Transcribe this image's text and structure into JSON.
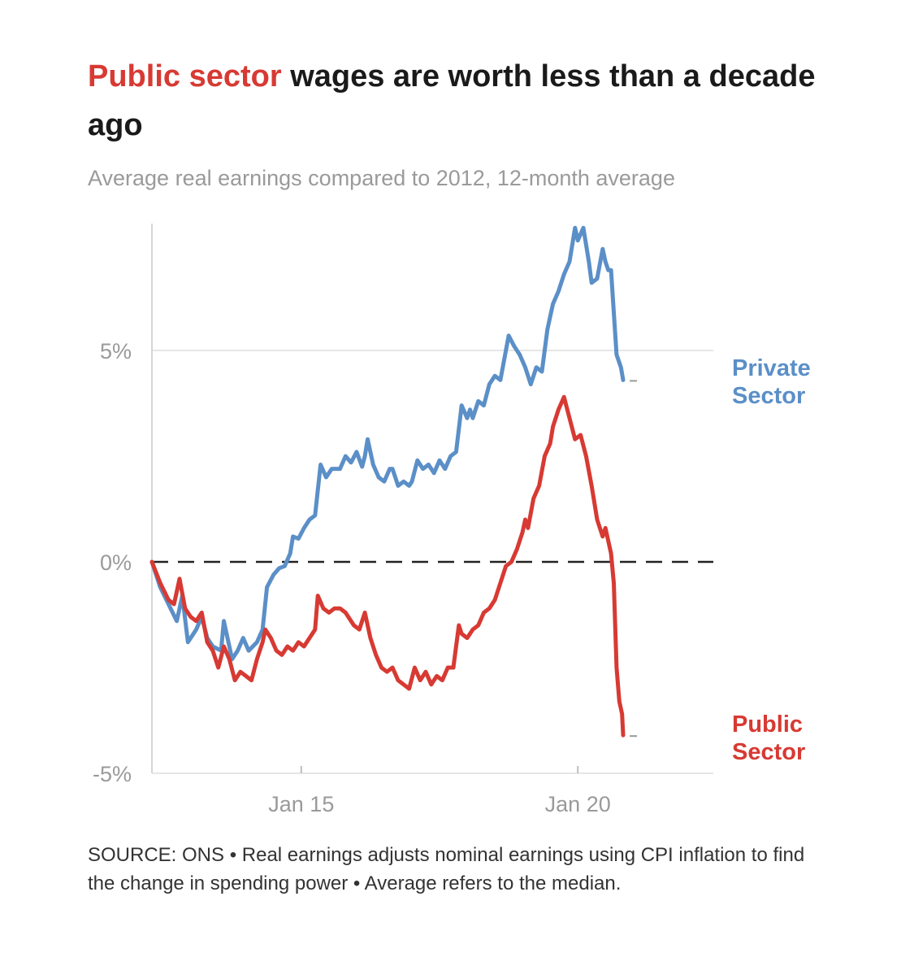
{
  "title": {
    "highlight": "Public sector",
    "rest": " wages are worth less than a decade ago",
    "highlight_color": "#d73a33"
  },
  "subtitle": "Average real earnings compared to 2012, 12-month average",
  "source": "SOURCE: ONS • Real earnings adjusts nominal earnings using CPI inflation to find the change in spending power • Average refers to the median.",
  "chart_data": {
    "type": "line",
    "title": "Public sector wages are worth less than a decade ago",
    "subtitle": "Average real earnings compared to 2012, 12-month average",
    "xlabel": "",
    "ylabel": "",
    "x_unit": "year (decimal)",
    "xlim": [
      2012.3,
      2022.45
    ],
    "ylim": [
      -5,
      8
    ],
    "y_ticks": [
      {
        "value": 5,
        "label": "5%"
      },
      {
        "value": 0,
        "label": "0%"
      },
      {
        "value": -5,
        "label": "-5%"
      }
    ],
    "x_ticks": [
      {
        "value": 2015,
        "label": "Jan 15"
      },
      {
        "value": 2020,
        "label": "Jan 20"
      }
    ],
    "baseline": {
      "value": 0,
      "style": "dashed"
    },
    "grid": "horizontal",
    "legend": "direct labels at line ends (right)",
    "series": [
      {
        "name": "Private Sector",
        "label_lines": [
          "Private",
          "Sector"
        ],
        "color": "#5b8fc7",
        "points": [
          [
            2012.3,
            0.0
          ],
          [
            2012.45,
            -0.6
          ],
          [
            2012.6,
            -1.0
          ],
          [
            2012.75,
            -1.4
          ],
          [
            2012.85,
            -0.8
          ],
          [
            2012.95,
            -1.9
          ],
          [
            2013.1,
            -1.6
          ],
          [
            2013.2,
            -1.3
          ],
          [
            2013.3,
            -1.8
          ],
          [
            2013.4,
            -2.0
          ],
          [
            2013.55,
            -2.1
          ],
          [
            2013.6,
            -1.4
          ],
          [
            2013.7,
            -2.0
          ],
          [
            2013.75,
            -2.3
          ],
          [
            2013.85,
            -2.1
          ],
          [
            2013.95,
            -1.8
          ],
          [
            2014.05,
            -2.1
          ],
          [
            2014.2,
            -1.9
          ],
          [
            2014.3,
            -1.6
          ],
          [
            2014.38,
            -0.6
          ],
          [
            2014.42,
            -0.5
          ],
          [
            2014.5,
            -0.3
          ],
          [
            2014.6,
            -0.15
          ],
          [
            2014.7,
            -0.1
          ],
          [
            2014.8,
            0.2
          ],
          [
            2014.85,
            0.6
          ],
          [
            2014.95,
            0.55
          ],
          [
            2015.05,
            0.8
          ],
          [
            2015.15,
            1.0
          ],
          [
            2015.25,
            1.1
          ],
          [
            2015.35,
            2.3
          ],
          [
            2015.45,
            2.0
          ],
          [
            2015.55,
            2.2
          ],
          [
            2015.7,
            2.2
          ],
          [
            2015.8,
            2.5
          ],
          [
            2015.9,
            2.35
          ],
          [
            2016.0,
            2.6
          ],
          [
            2016.1,
            2.25
          ],
          [
            2016.15,
            2.5
          ],
          [
            2016.2,
            2.9
          ],
          [
            2016.3,
            2.3
          ],
          [
            2016.4,
            2.0
          ],
          [
            2016.5,
            1.9
          ],
          [
            2016.6,
            2.2
          ],
          [
            2016.65,
            2.2
          ],
          [
            2016.75,
            1.8
          ],
          [
            2016.85,
            1.9
          ],
          [
            2016.95,
            1.8
          ],
          [
            2017.0,
            1.9
          ],
          [
            2017.1,
            2.4
          ],
          [
            2017.2,
            2.2
          ],
          [
            2017.3,
            2.3
          ],
          [
            2017.4,
            2.1
          ],
          [
            2017.5,
            2.4
          ],
          [
            2017.6,
            2.2
          ],
          [
            2017.7,
            2.5
          ],
          [
            2017.8,
            2.6
          ],
          [
            2017.9,
            3.7
          ],
          [
            2018.0,
            3.4
          ],
          [
            2018.05,
            3.6
          ],
          [
            2018.1,
            3.4
          ],
          [
            2018.2,
            3.8
          ],
          [
            2018.3,
            3.7
          ],
          [
            2018.4,
            4.2
          ],
          [
            2018.5,
            4.4
          ],
          [
            2018.6,
            4.3
          ],
          [
            2018.75,
            5.35
          ],
          [
            2018.85,
            5.1
          ],
          [
            2018.95,
            4.9
          ],
          [
            2019.05,
            4.6
          ],
          [
            2019.15,
            4.2
          ],
          [
            2019.25,
            4.6
          ],
          [
            2019.35,
            4.5
          ],
          [
            2019.45,
            5.5
          ],
          [
            2019.55,
            6.1
          ],
          [
            2019.65,
            6.4
          ],
          [
            2019.75,
            6.8
          ],
          [
            2019.85,
            7.1
          ],
          [
            2019.95,
            7.9
          ],
          [
            2020.0,
            7.6
          ],
          [
            2020.1,
            7.9
          ],
          [
            2020.2,
            7.1
          ],
          [
            2020.25,
            6.6
          ],
          [
            2020.35,
            6.7
          ],
          [
            2020.45,
            7.4
          ],
          [
            2020.5,
            7.1
          ],
          [
            2020.55,
            6.9
          ],
          [
            2020.6,
            6.9
          ],
          [
            2020.7,
            4.9
          ],
          [
            2020.78,
            4.6
          ],
          [
            2020.82,
            4.3
          ]
        ]
      },
      {
        "name": "Public Sector",
        "label_lines": [
          "Public",
          "Sector"
        ],
        "color": "#d73a33",
        "points": [
          [
            2012.3,
            0.0
          ],
          [
            2012.45,
            -0.5
          ],
          [
            2012.6,
            -0.9
          ],
          [
            2012.7,
            -1.0
          ],
          [
            2012.8,
            -0.4
          ],
          [
            2012.9,
            -1.1
          ],
          [
            2013.0,
            -1.3
          ],
          [
            2013.1,
            -1.4
          ],
          [
            2013.2,
            -1.2
          ],
          [
            2013.3,
            -1.9
          ],
          [
            2013.4,
            -2.1
          ],
          [
            2013.5,
            -2.5
          ],
          [
            2013.6,
            -2.0
          ],
          [
            2013.7,
            -2.3
          ],
          [
            2013.8,
            -2.8
          ],
          [
            2013.9,
            -2.6
          ],
          [
            2014.0,
            -2.7
          ],
          [
            2014.1,
            -2.8
          ],
          [
            2014.2,
            -2.3
          ],
          [
            2014.3,
            -1.9
          ],
          [
            2014.35,
            -1.6
          ],
          [
            2014.45,
            -1.8
          ],
          [
            2014.55,
            -2.1
          ],
          [
            2014.65,
            -2.2
          ],
          [
            2014.75,
            -2.0
          ],
          [
            2014.85,
            -2.1
          ],
          [
            2014.95,
            -1.9
          ],
          [
            2015.05,
            -2.0
          ],
          [
            2015.15,
            -1.8
          ],
          [
            2015.25,
            -1.6
          ],
          [
            2015.3,
            -0.8
          ],
          [
            2015.4,
            -1.1
          ],
          [
            2015.5,
            -1.2
          ],
          [
            2015.6,
            -1.1
          ],
          [
            2015.7,
            -1.1
          ],
          [
            2015.8,
            -1.2
          ],
          [
            2015.95,
            -1.5
          ],
          [
            2016.05,
            -1.6
          ],
          [
            2016.15,
            -1.2
          ],
          [
            2016.25,
            -1.8
          ],
          [
            2016.35,
            -2.2
          ],
          [
            2016.45,
            -2.5
          ],
          [
            2016.55,
            -2.6
          ],
          [
            2016.65,
            -2.5
          ],
          [
            2016.75,
            -2.8
          ],
          [
            2016.85,
            -2.9
          ],
          [
            2016.95,
            -3.0
          ],
          [
            2017.05,
            -2.5
          ],
          [
            2017.15,
            -2.8
          ],
          [
            2017.25,
            -2.6
          ],
          [
            2017.35,
            -2.9
          ],
          [
            2017.45,
            -2.7
          ],
          [
            2017.55,
            -2.8
          ],
          [
            2017.65,
            -2.5
          ],
          [
            2017.75,
            -2.5
          ],
          [
            2017.85,
            -1.5
          ],
          [
            2017.9,
            -1.7
          ],
          [
            2018.0,
            -1.8
          ],
          [
            2018.1,
            -1.6
          ],
          [
            2018.2,
            -1.5
          ],
          [
            2018.3,
            -1.2
          ],
          [
            2018.4,
            -1.1
          ],
          [
            2018.5,
            -0.9
          ],
          [
            2018.6,
            -0.5
          ],
          [
            2018.7,
            -0.1
          ],
          [
            2018.8,
            0.0
          ],
          [
            2018.9,
            0.3
          ],
          [
            2019.0,
            0.7
          ],
          [
            2019.05,
            1.0
          ],
          [
            2019.1,
            0.8
          ],
          [
            2019.2,
            1.5
          ],
          [
            2019.3,
            1.8
          ],
          [
            2019.4,
            2.5
          ],
          [
            2019.5,
            2.8
          ],
          [
            2019.55,
            3.2
          ],
          [
            2019.65,
            3.6
          ],
          [
            2019.75,
            3.9
          ],
          [
            2019.85,
            3.4
          ],
          [
            2019.95,
            2.9
          ],
          [
            2020.05,
            3.0
          ],
          [
            2020.15,
            2.5
          ],
          [
            2020.25,
            1.8
          ],
          [
            2020.35,
            1.0
          ],
          [
            2020.45,
            0.6
          ],
          [
            2020.5,
            0.8
          ],
          [
            2020.6,
            0.2
          ],
          [
            2020.65,
            -0.5
          ],
          [
            2020.7,
            -2.5
          ],
          [
            2020.75,
            -3.3
          ],
          [
            2020.8,
            -3.6
          ],
          [
            2020.82,
            -4.1
          ]
        ]
      }
    ]
  }
}
